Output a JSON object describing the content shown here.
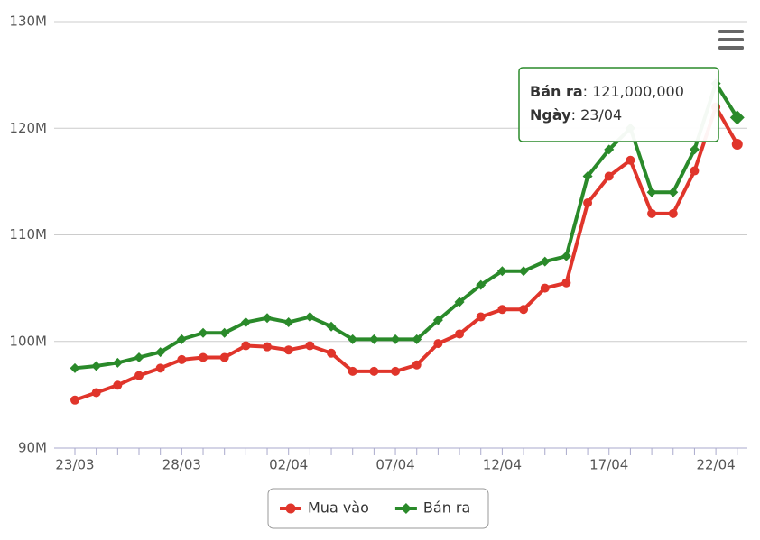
{
  "chart_data": {
    "type": "line",
    "categories": [
      "23/03",
      null,
      null,
      null,
      null,
      "28/03",
      null,
      null,
      null,
      null,
      "02/04",
      null,
      null,
      null,
      null,
      "07/04",
      null,
      null,
      null,
      null,
      "12/04",
      null,
      null,
      null,
      null,
      "17/04",
      null,
      null,
      null,
      null,
      "22/04",
      null
    ],
    "series": [
      {
        "name": "Mua vào",
        "color": "#e0352b",
        "marker": "circle",
        "values": [
          94.5,
          95.2,
          95.9,
          96.8,
          97.5,
          98.3,
          98.5,
          98.5,
          99.6,
          99.5,
          99.2,
          99.6,
          98.9,
          97.2,
          97.2,
          97.2,
          97.8,
          99.8,
          100.7,
          102.3,
          103,
          103,
          105,
          105.5,
          113,
          115.5,
          117,
          112,
          112,
          116,
          122,
          118.5
        ]
      },
      {
        "name": "Bán ra",
        "color": "#2a8a2a",
        "marker": "diamond",
        "values": [
          97.5,
          97.7,
          98,
          98.5,
          99,
          100.2,
          100.8,
          100.8,
          101.8,
          102.2,
          101.8,
          102.3,
          101.4,
          100.2,
          100.2,
          100.2,
          100.2,
          102,
          103.7,
          105.3,
          106.6,
          106.6,
          107.5,
          108,
          115.5,
          118,
          120,
          114,
          114,
          118,
          124.2,
          121
        ]
      }
    ],
    "ylim": [
      90,
      130
    ],
    "yticks": [
      {
        "value": 90,
        "label": "90M"
      },
      {
        "value": 100,
        "label": "100M"
      },
      {
        "value": 110,
        "label": "110M"
      },
      {
        "value": 120,
        "label": "120M"
      },
      {
        "value": 130,
        "label": "130M"
      }
    ],
    "grid": true,
    "tooltip": {
      "series_label": "Bán ra",
      "value_label": "121,000,000",
      "date_label": "Ngày",
      "date": "23/04"
    }
  }
}
